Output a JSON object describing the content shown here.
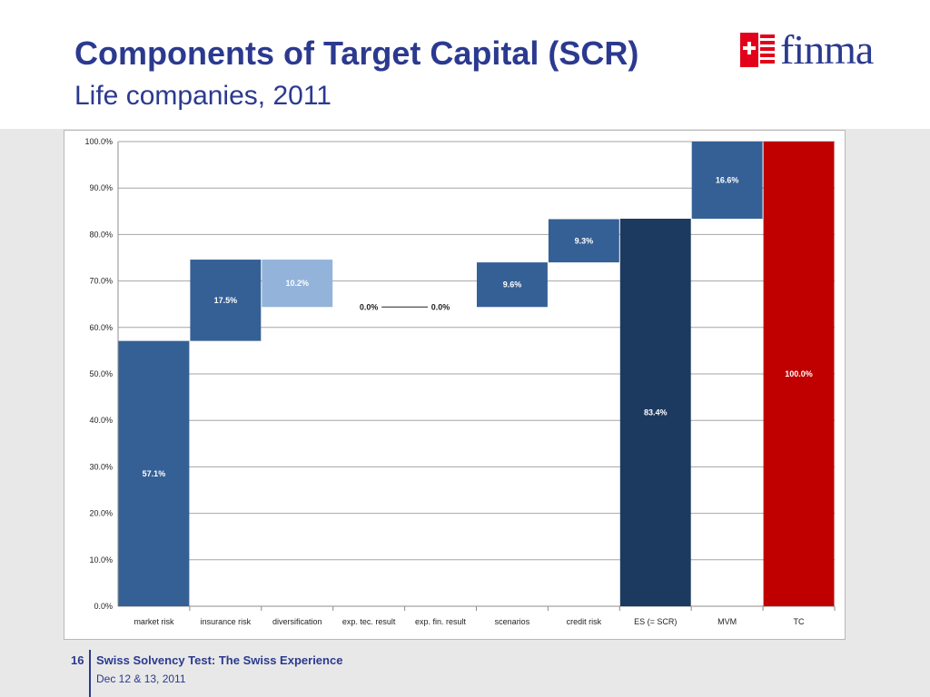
{
  "header": {
    "title": "Components of Target Capital (SCR)",
    "subtitle": "Life companies, 2011",
    "logo_text": "finma",
    "logo_icon": "swiss-cross-icon"
  },
  "footer": {
    "page_number": "16",
    "title": "Swiss Solvency Test: The Swiss Experience",
    "date": "Dec 12 & 13, 2011"
  },
  "colors": {
    "title": "#2b3a8f",
    "bar_mid": "#356095",
    "bar_light": "#93b3da",
    "bar_dark": "#1c3a60",
    "bar_red": "#c00000"
  },
  "chart_data": {
    "type": "bar",
    "subtype": "waterfall",
    "ylim": [
      0,
      100
    ],
    "y_ticks": [
      "0.0%",
      "10.0%",
      "20.0%",
      "30.0%",
      "40.0%",
      "50.0%",
      "60.0%",
      "70.0%",
      "80.0%",
      "90.0%",
      "100.0%"
    ],
    "grid": true,
    "categories": [
      "market risk",
      "insurance risk",
      "diversification",
      "exp. tec. result",
      "exp. fin. result",
      "scenarios",
      "credit risk",
      "ES (= SCR)",
      "MVM",
      "TC"
    ],
    "values": [
      57.1,
      17.5,
      -10.2,
      0.0,
      0.0,
      9.6,
      9.3,
      83.4,
      16.6,
      100.0
    ],
    "data_labels": [
      "57.1%",
      "17.5%",
      "10.2%",
      "0.0%",
      "0.0%",
      "9.6%",
      "9.3%",
      "83.4%",
      "16.6%",
      "100.0%"
    ],
    "bar_bottoms": [
      0,
      57.1,
      64.4,
      64.4,
      64.4,
      64.4,
      74.0,
      0,
      83.4,
      0
    ],
    "bar_tops": [
      57.1,
      74.6,
      74.6,
      64.4,
      64.4,
      74.0,
      83.3,
      83.4,
      100.0,
      100.0
    ],
    "bar_colors": [
      "#356095",
      "#356095",
      "#93b3da",
      "#356095",
      "#356095",
      "#356095",
      "#356095",
      "#1c3a60",
      "#356095",
      "#c00000"
    ]
  }
}
